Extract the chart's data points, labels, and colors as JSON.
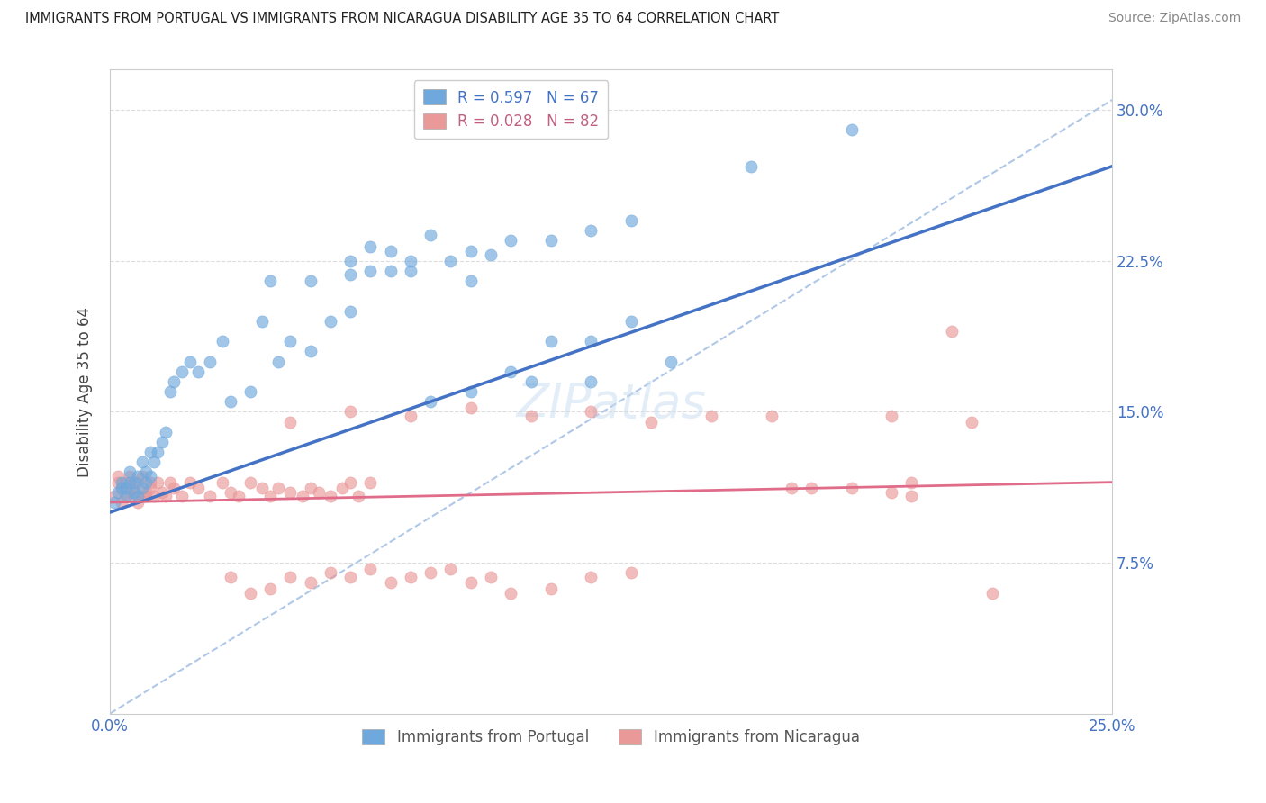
{
  "title": "IMMIGRANTS FROM PORTUGAL VS IMMIGRANTS FROM NICARAGUA DISABILITY AGE 35 TO 64 CORRELATION CHART",
  "source": "Source: ZipAtlas.com",
  "ylabel": "Disability Age 35 to 64",
  "xlim": [
    0.0,
    0.25
  ],
  "ylim": [
    0.0,
    0.32
  ],
  "yticks": [
    0.075,
    0.15,
    0.225,
    0.3
  ],
  "ytick_labels": [
    "7.5%",
    "15.0%",
    "22.5%",
    "30.0%"
  ],
  "xticks": [
    0.0,
    0.05,
    0.1,
    0.15,
    0.2,
    0.25
  ],
  "xtick_labels": [
    "0.0%",
    "",
    "",
    "",
    "",
    "25.0%"
  ],
  "portugal_color": "#6fa8dc",
  "nicaragua_color": "#ea9999",
  "portugal_R": 0.597,
  "portugal_N": 67,
  "nicaragua_R": 0.028,
  "nicaragua_N": 82,
  "trend_portugal_color": "#4472c4",
  "trend_nicaragua_color": "#e06c8a",
  "grid_color": "#dddddd",
  "label_color_blue": "#4472c4",
  "portugal_scatter_x": [
    0.001,
    0.002,
    0.003,
    0.003,
    0.004,
    0.004,
    0.005,
    0.005,
    0.006,
    0.006,
    0.007,
    0.007,
    0.008,
    0.008,
    0.009,
    0.009,
    0.01,
    0.01,
    0.011,
    0.012,
    0.013,
    0.014,
    0.015,
    0.016,
    0.018,
    0.02,
    0.022,
    0.025,
    0.028,
    0.03,
    0.035,
    0.038,
    0.042,
    0.045,
    0.05,
    0.055,
    0.06,
    0.065,
    0.07,
    0.08,
    0.09,
    0.1,
    0.11,
    0.12,
    0.13,
    0.06,
    0.065,
    0.07,
    0.075,
    0.08,
    0.085,
    0.09,
    0.095,
    0.1,
    0.11,
    0.12,
    0.13,
    0.04,
    0.05,
    0.06,
    0.075,
    0.09,
    0.105,
    0.12,
    0.14,
    0.16,
    0.185
  ],
  "portugal_scatter_y": [
    0.105,
    0.11,
    0.112,
    0.115,
    0.108,
    0.112,
    0.115,
    0.12,
    0.11,
    0.115,
    0.108,
    0.118,
    0.112,
    0.125,
    0.115,
    0.12,
    0.118,
    0.13,
    0.125,
    0.13,
    0.135,
    0.14,
    0.16,
    0.165,
    0.17,
    0.175,
    0.17,
    0.175,
    0.185,
    0.155,
    0.16,
    0.195,
    0.175,
    0.185,
    0.18,
    0.195,
    0.2,
    0.22,
    0.22,
    0.155,
    0.16,
    0.17,
    0.185,
    0.185,
    0.195,
    0.225,
    0.232,
    0.23,
    0.225,
    0.238,
    0.225,
    0.23,
    0.228,
    0.235,
    0.235,
    0.24,
    0.245,
    0.215,
    0.215,
    0.218,
    0.22,
    0.215,
    0.165,
    0.165,
    0.175,
    0.272,
    0.29
  ],
  "nicaragua_scatter_x": [
    0.001,
    0.002,
    0.002,
    0.003,
    0.003,
    0.004,
    0.004,
    0.005,
    0.005,
    0.006,
    0.006,
    0.007,
    0.007,
    0.008,
    0.008,
    0.009,
    0.009,
    0.01,
    0.01,
    0.011,
    0.012,
    0.013,
    0.014,
    0.015,
    0.016,
    0.018,
    0.02,
    0.022,
    0.025,
    0.028,
    0.03,
    0.032,
    0.035,
    0.038,
    0.04,
    0.042,
    0.045,
    0.048,
    0.05,
    0.052,
    0.055,
    0.058,
    0.06,
    0.062,
    0.065,
    0.03,
    0.035,
    0.04,
    0.045,
    0.05,
    0.055,
    0.06,
    0.065,
    0.07,
    0.075,
    0.08,
    0.085,
    0.09,
    0.095,
    0.1,
    0.11,
    0.12,
    0.13,
    0.17,
    0.195,
    0.195,
    0.2,
    0.215,
    0.045,
    0.06,
    0.075,
    0.09,
    0.105,
    0.12,
    0.135,
    0.15,
    0.165,
    0.175,
    0.185,
    0.2,
    0.21,
    0.22
  ],
  "nicaragua_scatter_y": [
    0.108,
    0.115,
    0.118,
    0.105,
    0.112,
    0.108,
    0.115,
    0.11,
    0.118,
    0.108,
    0.112,
    0.105,
    0.115,
    0.108,
    0.118,
    0.11,
    0.108,
    0.115,
    0.112,
    0.108,
    0.115,
    0.11,
    0.108,
    0.115,
    0.112,
    0.108,
    0.115,
    0.112,
    0.108,
    0.115,
    0.11,
    0.108,
    0.115,
    0.112,
    0.108,
    0.112,
    0.11,
    0.108,
    0.112,
    0.11,
    0.108,
    0.112,
    0.115,
    0.108,
    0.115,
    0.068,
    0.06,
    0.062,
    0.068,
    0.065,
    0.07,
    0.068,
    0.072,
    0.065,
    0.068,
    0.07,
    0.072,
    0.065,
    0.068,
    0.06,
    0.062,
    0.068,
    0.07,
    0.112,
    0.11,
    0.148,
    0.115,
    0.145,
    0.145,
    0.15,
    0.148,
    0.152,
    0.148,
    0.15,
    0.145,
    0.148,
    0.148,
    0.112,
    0.112,
    0.108,
    0.19,
    0.06
  ]
}
